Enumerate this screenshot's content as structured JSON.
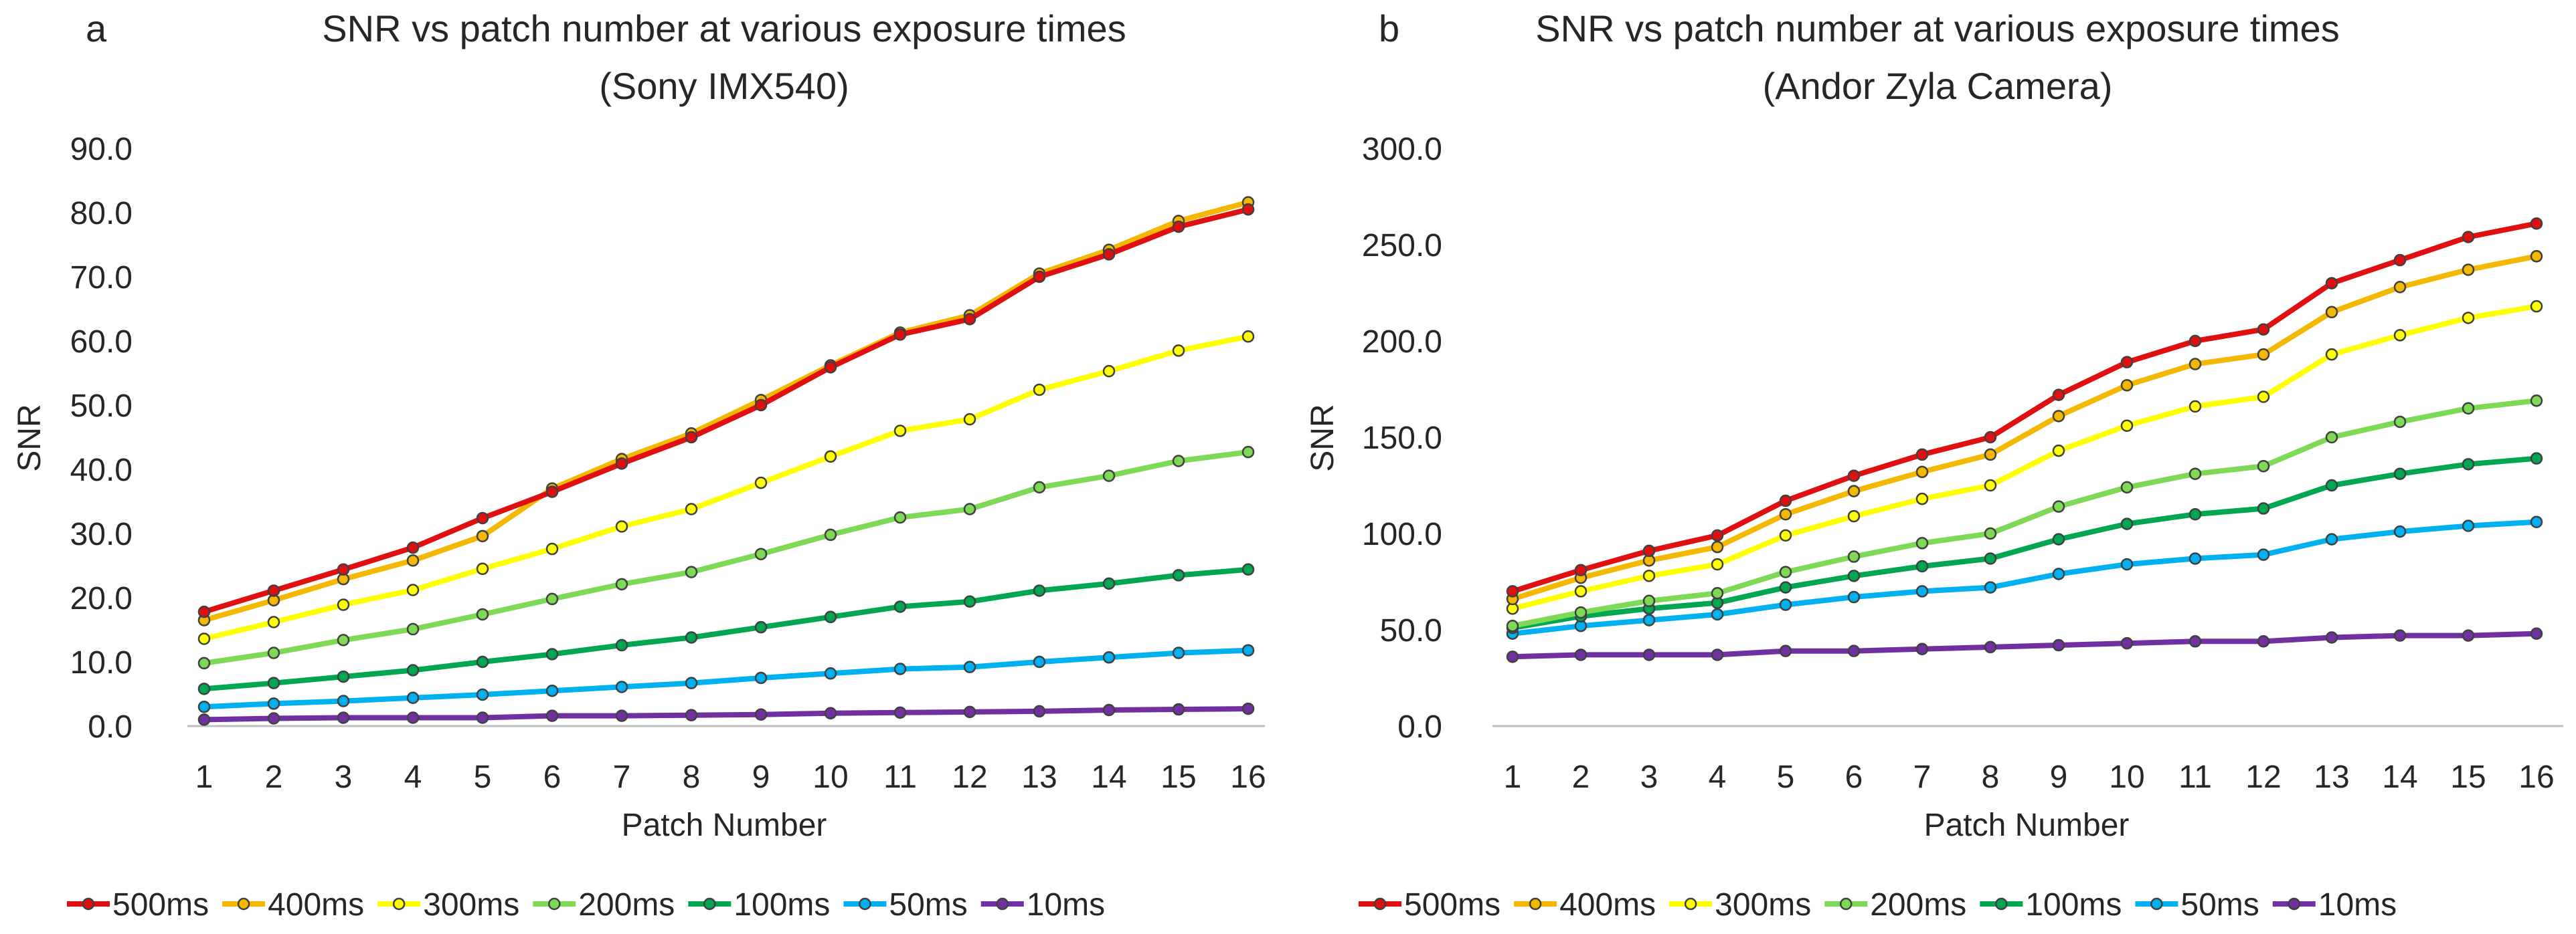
{
  "colors": {
    "500ms": "#e01010",
    "400ms": "#f5b800",
    "300ms": "#ffff00",
    "200ms": "#7ed957",
    "100ms": "#00a650",
    "50ms": "#00b0f0",
    "10ms": "#7030a0"
  },
  "chart_data": [
    {
      "type": "line",
      "panel_label": "a",
      "title_line1": "SNR vs patch number at various exposure times",
      "title_line2": "(Sony IMX540)",
      "xlabel": "Patch Number",
      "ylabel": "SNR",
      "ylim": [
        0,
        90
      ],
      "ytick_step": 10,
      "ytick_labels": [
        "0.0",
        "10.0",
        "20.0",
        "30.0",
        "40.0",
        "50.0",
        "60.0",
        "70.0",
        "80.0",
        "90.0"
      ],
      "categories": [
        "1",
        "2",
        "3",
        "4",
        "5",
        "6",
        "7",
        "8",
        "9",
        "10",
        "11",
        "12",
        "13",
        "14",
        "15",
        "16"
      ],
      "legend_position": "bottom",
      "series": [
        {
          "name": "500ms",
          "values": [
            17.8,
            21.1,
            24.4,
            27.8,
            32.4,
            36.5,
            40.9,
            45.0,
            50.0,
            55.9,
            61.0,
            63.4,
            70.0,
            73.5,
            77.8,
            80.5
          ]
        },
        {
          "name": "400ms",
          "values": [
            16.5,
            19.6,
            22.9,
            25.8,
            29.6,
            37.0,
            41.6,
            45.6,
            50.8,
            56.2,
            61.3,
            64.0,
            70.5,
            74.2,
            78.7,
            81.6
          ]
        },
        {
          "name": "300ms",
          "values": [
            13.6,
            16.2,
            18.9,
            21.2,
            24.5,
            27.6,
            31.1,
            33.8,
            37.9,
            42.0,
            46.0,
            47.8,
            52.4,
            55.3,
            58.5,
            60.7
          ]
        },
        {
          "name": "200ms",
          "values": [
            9.8,
            11.4,
            13.4,
            15.1,
            17.4,
            19.8,
            22.1,
            24.0,
            26.8,
            29.8,
            32.5,
            33.8,
            37.2,
            39.0,
            41.3,
            42.7
          ]
        },
        {
          "name": "100ms",
          "values": [
            5.8,
            6.7,
            7.7,
            8.7,
            10.0,
            11.2,
            12.6,
            13.8,
            15.4,
            17.0,
            18.6,
            19.4,
            21.1,
            22.2,
            23.5,
            24.4
          ]
        },
        {
          "name": "50ms",
          "values": [
            3.0,
            3.5,
            3.9,
            4.4,
            4.9,
            5.5,
            6.1,
            6.7,
            7.5,
            8.2,
            8.9,
            9.2,
            10.0,
            10.7,
            11.4,
            11.8
          ]
        },
        {
          "name": "10ms",
          "values": [
            1.0,
            1.2,
            1.3,
            1.3,
            1.3,
            1.6,
            1.6,
            1.7,
            1.8,
            2.0,
            2.1,
            2.2,
            2.3,
            2.5,
            2.6,
            2.7
          ]
        }
      ]
    },
    {
      "type": "line",
      "panel_label": "b",
      "title_line1": "SNR vs patch number at various exposure times",
      "title_line2": "(Andor Zyla Camera)",
      "xlabel": "Patch Number",
      "ylabel": "SNR",
      "ylim": [
        0,
        300
      ],
      "ytick_step": 50,
      "ytick_labels": [
        "0.0",
        "50.0",
        "100.0",
        "150.0",
        "200.0",
        "250.0",
        "300.0"
      ],
      "categories": [
        "1",
        "2",
        "3",
        "4",
        "5",
        "6",
        "7",
        "8",
        "9",
        "10",
        "11",
        "12",
        "13",
        "14",
        "15",
        "16"
      ],
      "legend_position": "bottom",
      "series": [
        {
          "name": "500ms",
          "values": [
            70,
            81,
            91,
            99,
            117,
            130,
            141,
            150,
            172,
            189,
            200,
            206,
            230,
            242,
            254,
            261
          ]
        },
        {
          "name": "400ms",
          "values": [
            66,
            77,
            86,
            93,
            110,
            122,
            132,
            141,
            161,
            177,
            188,
            193,
            215,
            228,
            237,
            244
          ]
        },
        {
          "name": "300ms",
          "values": [
            61,
            70,
            78,
            84,
            99,
            109,
            118,
            125,
            143,
            156,
            166,
            171,
            193,
            203,
            212,
            218
          ]
        },
        {
          "name": "200ms",
          "values": [
            52,
            59,
            65,
            69,
            80,
            88,
            95,
            100,
            114,
            124,
            131,
            135,
            150,
            158,
            165,
            169
          ]
        },
        {
          "name": "100ms",
          "values": [
            51,
            57,
            61,
            64,
            72,
            78,
            83,
            87,
            97,
            105,
            110,
            113,
            125,
            131,
            136,
            139
          ]
        },
        {
          "name": "50ms",
          "values": [
            48,
            52,
            55,
            58,
            63,
            67,
            70,
            72,
            79,
            84,
            87,
            89,
            97,
            101,
            104,
            106
          ]
        },
        {
          "name": "10ms",
          "values": [
            36,
            37,
            37,
            37,
            39,
            39,
            40,
            41,
            42,
            43,
            44,
            44,
            46,
            47,
            47,
            48
          ]
        }
      ]
    }
  ]
}
